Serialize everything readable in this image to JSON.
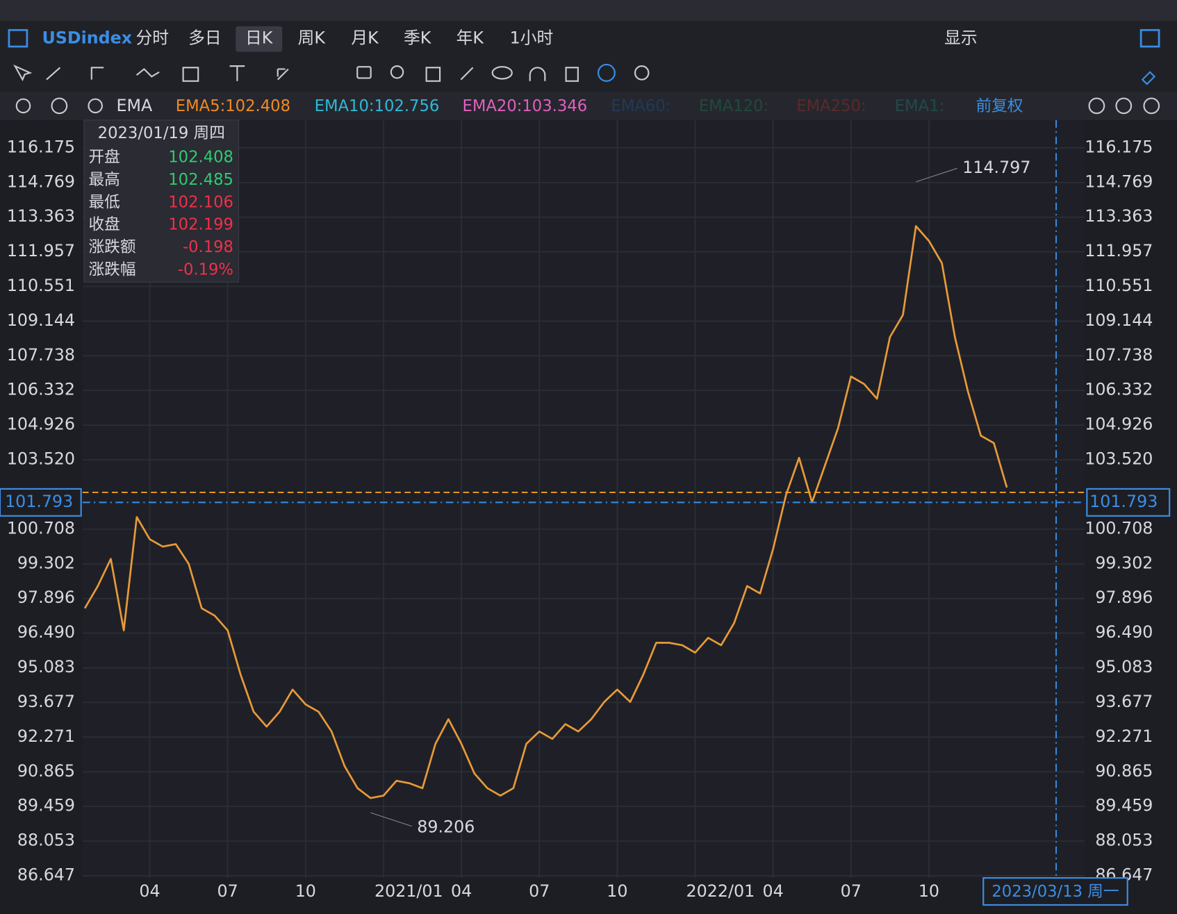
{
  "toolbar": {
    "symbol": "USDindex",
    "periods": [
      "分时",
      "多日",
      "日K",
      "周K",
      "月K",
      "季K",
      "年K",
      "1小时"
    ],
    "display": "显示"
  },
  "indicators": {
    "name": "EMA",
    "items": [
      {
        "label": "EMA5:102.408",
        "color": "#f08a24"
      },
      {
        "label": "EMA10:102.756",
        "color": "#2fb8d8"
      },
      {
        "label": "EMA20:103.346",
        "color": "#e060c0"
      },
      {
        "label": "EMA60:",
        "color": "#1f3a5a"
      },
      {
        "label": "EMA120:",
        "color": "#1f4a3a"
      },
      {
        "label": "EMA250:",
        "color": "#5a2a2a"
      },
      {
        "label": "EMA1:",
        "color": "#1f4a4a"
      }
    ],
    "adjust": "前复权"
  },
  "tooltip": {
    "date": "2023/01/19 周四",
    "rows": [
      {
        "label": "开盘",
        "value": 102.408,
        "color": "#2ecc71"
      },
      {
        "label": "最高",
        "value": 102.485,
        "color": "#2ecc71"
      },
      {
        "label": "最低",
        "value": 102.106,
        "color": "#f0304a"
      },
      {
        "label": "收盘",
        "value": 102.199,
        "color": "#f0304a"
      },
      {
        "label": "涨跌额",
        "value": -0.198,
        "color": "#f0304a"
      },
      {
        "label": "涨跌幅",
        "value": -0.19,
        "value_label": "-0.19%",
        "color": "#f0304a"
      }
    ]
  },
  "chart_data": {
    "type": "line",
    "categories": [
      null,
      null,
      null,
      null,
      null,
      "04",
      null,
      null,
      null,
      null,
      null,
      "07",
      null,
      null,
      null,
      null,
      null,
      "10",
      null,
      null,
      null,
      null,
      null,
      "2021/01",
      null,
      null,
      null,
      null,
      null,
      "04",
      null,
      null,
      null,
      null,
      null,
      "07",
      null,
      null,
      null,
      null,
      null,
      "10",
      null,
      null,
      null,
      null,
      null,
      "2022/01",
      null,
      null,
      null,
      null,
      null,
      "04",
      null,
      null,
      null,
      null,
      null,
      "07",
      null,
      null,
      null,
      null,
      null,
      "10",
      null,
      null,
      null,
      null,
      null,
      null
    ],
    "values": [
      97.5,
      98.4,
      99.5,
      96.6,
      101.2,
      100.3,
      100.0,
      100.1,
      99.3,
      97.5,
      97.2,
      96.6,
      94.8,
      93.3,
      92.7,
      93.3,
      94.2,
      93.6,
      93.3,
      92.5,
      91.1,
      90.2,
      89.8,
      89.9,
      90.5,
      90.4,
      90.2,
      92.0,
      93.0,
      92.0,
      90.8,
      90.2,
      89.9,
      90.2,
      92.0,
      92.5,
      92.2,
      92.8,
      92.5,
      93.0,
      93.7,
      94.2,
      93.7,
      94.8,
      96.1,
      96.1,
      96.0,
      95.7,
      96.3,
      96.0,
      96.9,
      98.4,
      98.1,
      99.9,
      102.1,
      103.6,
      101.8,
      103.3,
      104.8,
      106.9,
      106.6,
      106.0,
      108.5,
      109.4,
      113.0,
      112.4,
      111.5,
      108.5,
      106.3,
      104.5,
      104.2,
      102.4
    ],
    "color": "#e89a38",
    "ylim": [
      86.56,
      117.3
    ],
    "yticks": [
      116.175,
      114.769,
      113.363,
      111.957,
      110.551,
      109.144,
      107.738,
      106.332,
      104.926,
      {
        "value": 103.52,
        "label": "103.520"
      },
      100.708,
      99.302,
      97.896,
      {
        "value": 96.49,
        "label": "96.490"
      },
      95.083,
      93.677,
      92.271,
      90.865,
      89.459,
      88.053,
      86.647
    ],
    "grid": true,
    "high": 114.797,
    "low": 89.206,
    "crosshair": {
      "value": 101.793,
      "date": "2023/03/13 周一"
    }
  }
}
